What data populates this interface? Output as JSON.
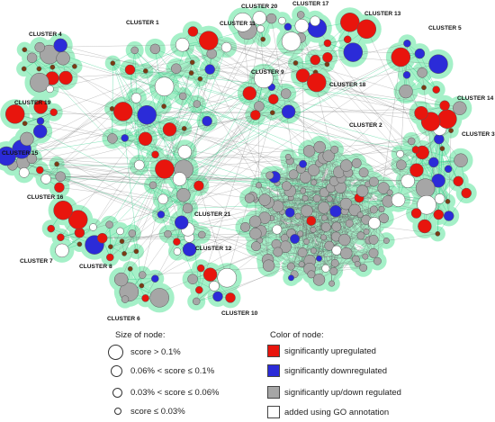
{
  "colors": {
    "up": "#e8150d",
    "down": "#2b2bd8",
    "updown": "#a6a6a6",
    "added": "#ffffff",
    "halo": "#a5f0c8",
    "node_stroke": "#555555",
    "edge_cross": "#2fd08a",
    "edge_inner": "#666666",
    "minor_node": "#7a3b12"
  },
  "clusters": [
    {
      "id": "c1",
      "label": "CLUSTER 1",
      "size": 26,
      "mix": [
        0.35,
        0.12,
        0.35,
        0.18
      ]
    },
    {
      "id": "c2",
      "label": "CLUSTER 2",
      "size": 120,
      "mix": [
        0.03,
        0.04,
        0.85,
        0.08
      ]
    },
    {
      "id": "c3",
      "label": "CLUSTER 3",
      "size": 26,
      "mix": [
        0.35,
        0.35,
        0.12,
        0.18
      ]
    },
    {
      "id": "c4",
      "label": "CLUSTER 4",
      "size": 14,
      "mix": [
        0.15,
        0.2,
        0.5,
        0.15
      ]
    },
    {
      "id": "c5",
      "label": "CLUSTER 5",
      "size": 9,
      "mix": [
        0.15,
        0.5,
        0.25,
        0.1
      ]
    },
    {
      "id": "c6",
      "label": "CLUSTER 6",
      "size": 9,
      "mix": [
        0.1,
        0.15,
        0.6,
        0.15
      ]
    },
    {
      "id": "c7",
      "label": "CLUSTER 7",
      "size": 9,
      "mix": [
        0.6,
        0.1,
        0.2,
        0.1
      ]
    },
    {
      "id": "c8",
      "label": "CLUSTER 8",
      "size": 9,
      "mix": [
        0.55,
        0.15,
        0.2,
        0.1
      ]
    },
    {
      "id": "c9",
      "label": "CLUSTER 9",
      "size": 9,
      "mix": [
        0.55,
        0.1,
        0.15,
        0.2
      ]
    },
    {
      "id": "c10",
      "label": "CLUSTER 10",
      "size": 9,
      "mix": [
        0.55,
        0.15,
        0.2,
        0.1
      ]
    },
    {
      "id": "c11",
      "label": "CLUSTER 11",
      "size": 8,
      "mix": [
        0.45,
        0.25,
        0.15,
        0.15
      ]
    },
    {
      "id": "c12",
      "label": "CLUSTER 12",
      "size": 8,
      "mix": [
        0.15,
        0.15,
        0.2,
        0.5
      ]
    },
    {
      "id": "c13",
      "label": "CLUSTER 13",
      "size": 7,
      "mix": [
        0.75,
        0.05,
        0.1,
        0.1
      ]
    },
    {
      "id": "c14",
      "label": "CLUSTER 14",
      "size": 6,
      "mix": [
        0.75,
        0.05,
        0.1,
        0.1
      ]
    },
    {
      "id": "c15",
      "label": "CLUSTER 15",
      "size": 6,
      "mix": [
        0.15,
        0.15,
        0.5,
        0.2
      ]
    },
    {
      "id": "c16",
      "label": "CLUSTER 16",
      "size": 5,
      "mix": [
        0.5,
        0.2,
        0.2,
        0.1
      ]
    },
    {
      "id": "c17",
      "label": "CLUSTER 17",
      "size": 7,
      "mix": [
        0.15,
        0.3,
        0.2,
        0.35
      ]
    },
    {
      "id": "c18",
      "label": "CLUSTER 18",
      "size": 6,
      "mix": [
        0.45,
        0.1,
        0.15,
        0.3
      ]
    },
    {
      "id": "c19",
      "label": "CLUSTER 19",
      "size": 7,
      "mix": [
        0.5,
        0.15,
        0.2,
        0.15
      ]
    },
    {
      "id": "c20",
      "label": "CLUSTER 20",
      "size": 6,
      "mix": [
        0.1,
        0.1,
        0.15,
        0.65
      ]
    },
    {
      "id": "c21",
      "label": "CLUSTER 21",
      "size": 8,
      "mix": [
        0.2,
        0.2,
        0.4,
        0.2
      ]
    }
  ],
  "legend": {
    "size_title": "Size of node:",
    "size_items": [
      {
        "label": "score > 0.1%"
      },
      {
        "label": "0.06% < score ≤ 0.1%"
      },
      {
        "label": "0.03% < score ≤ 0.06%"
      },
      {
        "label": "score ≤ 0.03%"
      }
    ],
    "color_title": "Color of node:",
    "color_items": [
      {
        "label": "significantly upregulated",
        "color": "#e8150d"
      },
      {
        "label": "significantly downregulated",
        "color": "#2b2bd8"
      },
      {
        "label": "significantly up/down regulated",
        "color": "#a6a6a6"
      },
      {
        "label": "added using GO annotation",
        "color": "#ffffff"
      }
    ]
  }
}
